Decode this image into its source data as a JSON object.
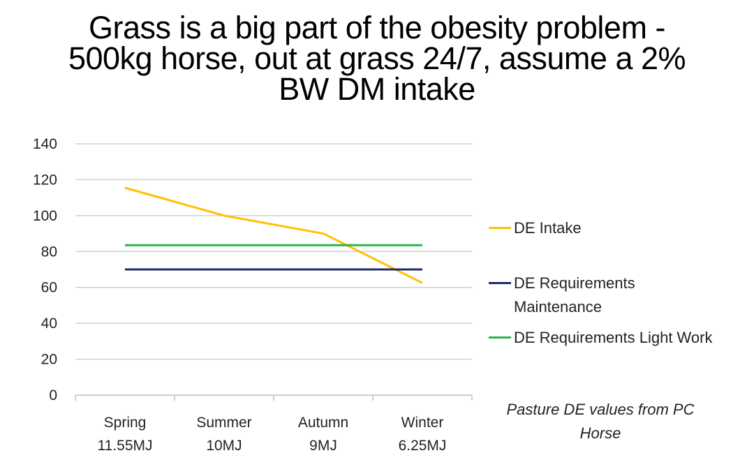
{
  "title_lines": [
    "Grass is a big part of the obesity problem -",
    "500kg horse, out at grass 24/7, assume a 2%",
    "BW DM intake"
  ],
  "note": "Pasture DE values from PC Horse",
  "chart_data": {
    "type": "line",
    "title": "Grass is a big part of the obesity problem - 500kg horse, out at grass 24/7, assume a 2% BW DM intake",
    "categories": [
      [
        "Spring",
        "11.55MJ"
      ],
      [
        "Summer",
        "10MJ"
      ],
      [
        "Autumn",
        "9MJ"
      ],
      [
        "Winter",
        "6.25MJ"
      ]
    ],
    "ylim": [
      0,
      140
    ],
    "yticks": [
      0,
      20,
      40,
      60,
      80,
      100,
      120,
      140
    ],
    "grid": true,
    "legend_position": "right",
    "series": [
      {
        "name": "DE Intake",
        "color": "#FFC000",
        "values": [
          115.5,
          100,
          90,
          62.5
        ]
      },
      {
        "name": "DE Requirements Maintenance",
        "color": "#1F2A6B",
        "values": [
          70,
          70,
          70,
          70
        ]
      },
      {
        "name": "DE Requirements Light Work",
        "color": "#2DB34A",
        "values": [
          83.5,
          83.5,
          83.5,
          83.5
        ]
      }
    ]
  }
}
